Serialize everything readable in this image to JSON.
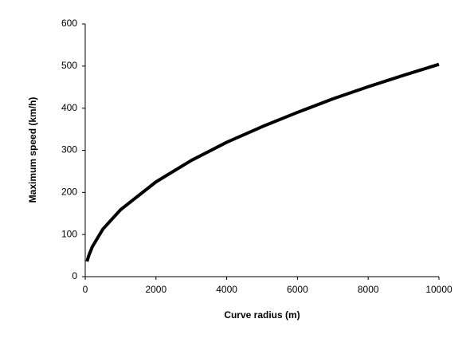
{
  "chart_data": {
    "type": "line",
    "x_label": "Curve radius (m)",
    "y_label": "Maximum speed (km/h)",
    "series": [
      {
        "color": "#000000",
        "x": [
          50,
          100,
          200,
          500,
          1000,
          2000,
          3000,
          4000,
          5000,
          6000,
          7000,
          8000,
          9000,
          10000
        ],
        "values": [
          36,
          50,
          71,
          113,
          159,
          225,
          276,
          319,
          356,
          390,
          422,
          451,
          478,
          504
        ]
      }
    ],
    "xlim": [
      0,
      10000
    ],
    "xticks": [
      0,
      2000,
      4000,
      6000,
      8000,
      10000
    ],
    "ylim": [
      0,
      600
    ],
    "yticks": [
      0,
      100,
      200,
      300,
      400,
      500,
      600
    ],
    "grid": false
  }
}
